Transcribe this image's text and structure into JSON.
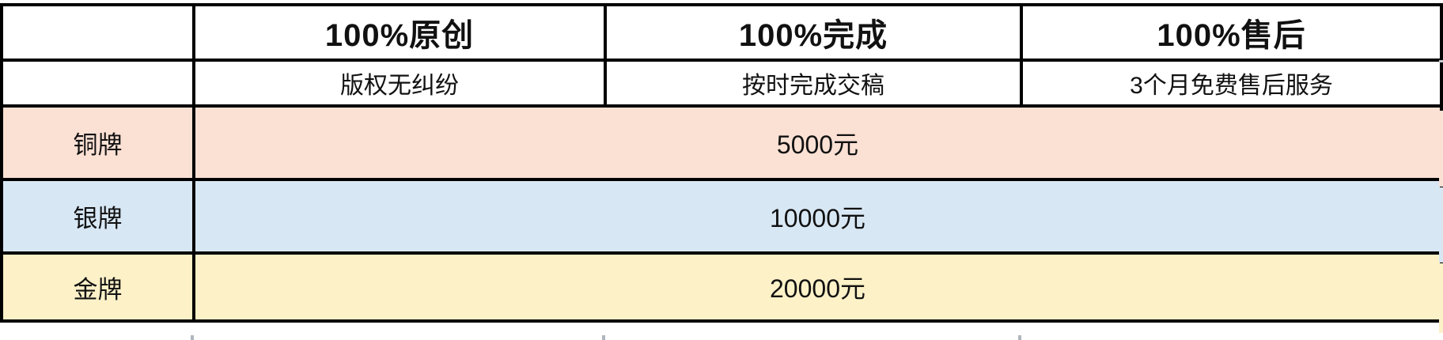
{
  "table": {
    "header": {
      "corner": "",
      "col_original": "100%原创",
      "col_complete": "100%完成",
      "col_aftersale": "100%售后"
    },
    "subheader": {
      "corner": "",
      "col_original": "版权无纠纷",
      "col_complete": "按时完成交稿",
      "col_aftersale": "3个月免费售后服务"
    },
    "tiers": [
      {
        "label": "铜牌",
        "price": "5000元",
        "color": "#fbe0d4"
      },
      {
        "label": "银牌",
        "price": "10000元",
        "color": "#d8e7f4"
      },
      {
        "label": "金牌",
        "price": "20000元",
        "color": "#fdf1c8"
      }
    ],
    "border_color": "#000000",
    "text_color": "#111111"
  }
}
